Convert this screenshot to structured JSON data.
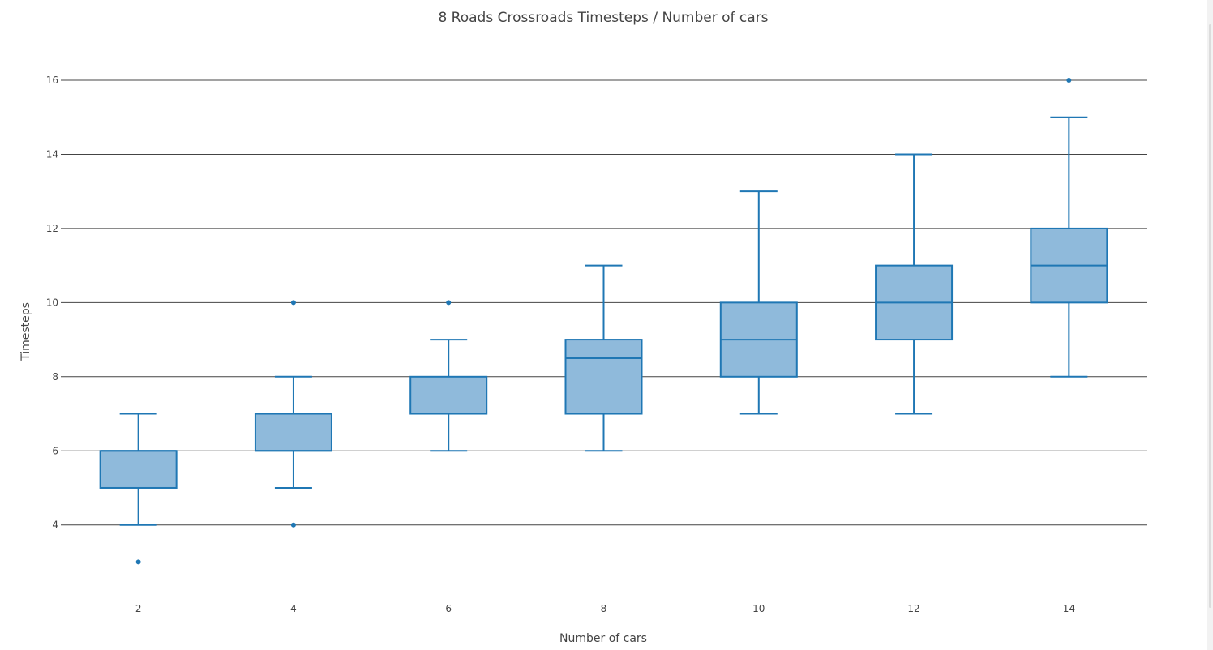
{
  "chart_data": {
    "type": "box",
    "title": "8 Roads Crossroads Timesteps / Number of cars",
    "xlabel": "Number of cars",
    "ylabel": "Timesteps",
    "ylim": [
      2.2,
      17.4
    ],
    "yticks": [
      4,
      6,
      8,
      10,
      12,
      14,
      16
    ],
    "grid": true,
    "box_fill_color": "#8fbadb",
    "box_line_color": "#1f77b4",
    "gridline_color": "#444444",
    "boxes": [
      {
        "x": 2,
        "x_label": "2",
        "min": 4,
        "q1": 5,
        "median": 6,
        "q3": 6,
        "max": 7,
        "outliers": [
          3
        ]
      },
      {
        "x": 4,
        "x_label": "4",
        "min": 5,
        "q1": 6,
        "median": 6,
        "q3": 7,
        "max": 8,
        "outliers": [
          4,
          10
        ]
      },
      {
        "x": 6,
        "x_label": "6",
        "min": 6,
        "q1": 7,
        "median": 7,
        "q3": 8,
        "max": 9,
        "outliers": [
          10
        ]
      },
      {
        "x": 8,
        "x_label": "8",
        "min": 6,
        "q1": 7,
        "median": 8.5,
        "q3": 9,
        "max": 11,
        "outliers": []
      },
      {
        "x": 10,
        "x_label": "10",
        "min": 7,
        "q1": 8,
        "median": 9,
        "q3": 10,
        "max": 13,
        "outliers": []
      },
      {
        "x": 12,
        "x_label": "12",
        "min": 7,
        "q1": 9,
        "median": 10,
        "q3": 11,
        "max": 14,
        "outliers": []
      },
      {
        "x": 14,
        "x_label": "14",
        "min": 8,
        "q1": 10,
        "median": 11,
        "q3": 12,
        "max": 15,
        "outliers": [
          16
        ]
      }
    ]
  }
}
